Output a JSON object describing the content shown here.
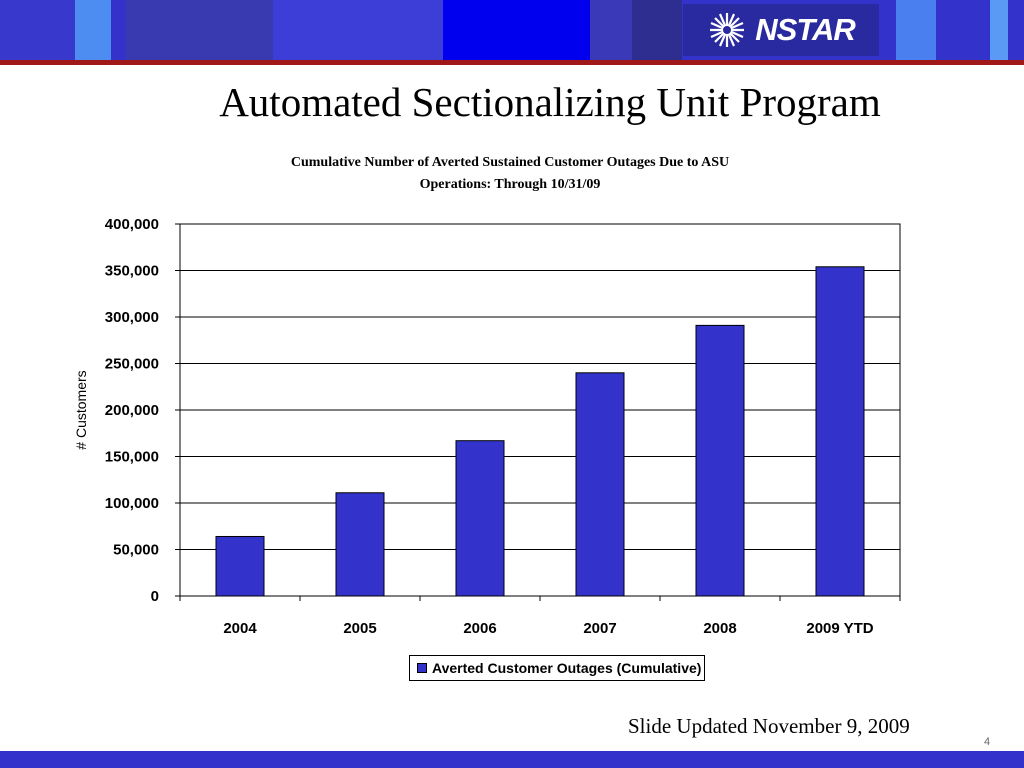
{
  "slide": {
    "title": "Automated Sectionalizing Unit Program",
    "logo_text": "NSTAR",
    "footer_note": "Slide Updated November 9, 2009",
    "page_number": "4"
  },
  "colors": {
    "bar_fill": "#3333cc",
    "banner": "#3333cc",
    "accent_red": "#a01818"
  },
  "chart_data": {
    "type": "bar",
    "title_lines": [
      "Cumulative Number of Averted Sustained Customer Outages Due to ASU",
      "Operations: Through 10/31/09"
    ],
    "categories": [
      "2004",
      "2005",
      "2006",
      "2007",
      "2008",
      "2009 YTD"
    ],
    "series": [
      {
        "name": "Averted Customer Outages (Cumulative)",
        "values": [
          64000,
          111000,
          167000,
          240000,
          291000,
          354000
        ]
      }
    ],
    "ylabel": "# Customers",
    "xlabel": "",
    "ylim": [
      0,
      400000
    ],
    "yticks": [
      "0",
      "50,000",
      "100,000",
      "150,000",
      "200,000",
      "250,000",
      "300,000",
      "350,000",
      "400,000"
    ],
    "grid": true,
    "legend_position": "bottom"
  }
}
